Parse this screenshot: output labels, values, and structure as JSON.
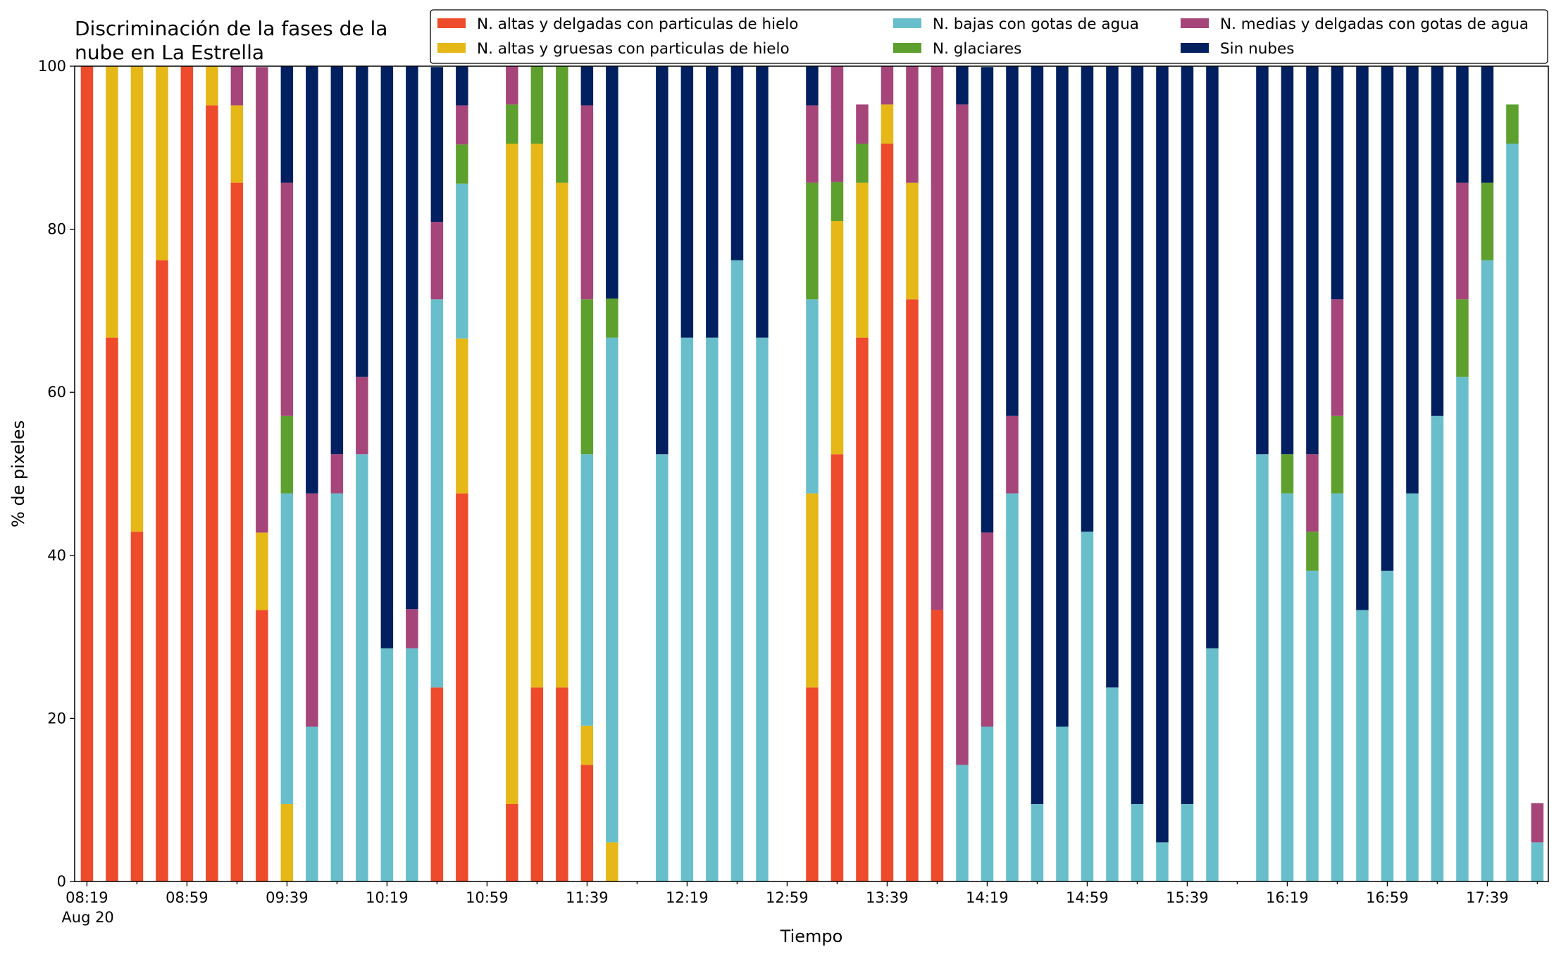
{
  "chart_data": {
    "type": "bar",
    "stacked": true,
    "title_lines": [
      "Discriminación de la fases de la",
      "nube en La Estrella"
    ],
    "xlabel": "Tiempo",
    "ylabel": "% de pixeles",
    "ylim": [
      0,
      100
    ],
    "yticks": [
      "0",
      "20",
      "40",
      "60",
      "80",
      "100"
    ],
    "grid": false,
    "legend_position": "top-right",
    "xtick_labels": [
      "08:19",
      "08:59",
      "09:39",
      "10:19",
      "10:59",
      "11:39",
      "12:19",
      "12:59",
      "13:39",
      "14:19",
      "14:59",
      "15:39",
      "16:19",
      "16:59",
      "17:39"
    ],
    "xtick_sub_label": "Aug 20",
    "series": [
      {
        "name": "N. altas y delgadas con particulas de hielo",
        "color": "#ED4B2B",
        "values": [
          100,
          66.7,
          42.9,
          76.2,
          100,
          95.2,
          85.7,
          33.3,
          0,
          0,
          0,
          0,
          0,
          0,
          23.8,
          47.6,
          null,
          9.5,
          23.8,
          23.8,
          14.3,
          0,
          null,
          0,
          0,
          0,
          0,
          0,
          null,
          23.8,
          52.4,
          66.7,
          90.5,
          71.4,
          33.3,
          0,
          0,
          0,
          0,
          0,
          0,
          0,
          0,
          0,
          0,
          0,
          null,
          0,
          0,
          0,
          0,
          0,
          0,
          0,
          0,
          0,
          0,
          0,
          0
        ]
      },
      {
        "name": "N. altas y gruesas con particulas de hielo",
        "color": "#E5B717",
        "values": [
          0,
          33.3,
          57.1,
          23.8,
          0,
          4.8,
          9.5,
          9.5,
          9.5,
          0,
          0,
          0,
          0,
          0,
          0,
          19.0,
          null,
          81.0,
          66.7,
          61.9,
          4.8,
          4.8,
          null,
          0,
          0,
          0,
          0,
          0,
          null,
          23.8,
          28.6,
          19.0,
          4.8,
          14.3,
          0,
          0,
          0,
          0,
          0,
          0,
          0,
          0,
          0,
          0,
          0,
          0,
          null,
          0,
          0,
          0,
          0,
          0,
          0,
          0,
          0,
          0,
          0,
          0,
          0
        ]
      },
      {
        "name": "N. bajas con gotas de agua",
        "color": "#68BFCB",
        "values": [
          0,
          0,
          0,
          0,
          0,
          0,
          0,
          0,
          38.1,
          19.0,
          47.6,
          52.4,
          28.6,
          28.6,
          47.6,
          19.0,
          null,
          0,
          0,
          0,
          33.3,
          61.9,
          null,
          52.4,
          66.7,
          66.7,
          76.2,
          66.7,
          null,
          23.8,
          0,
          0,
          0,
          0,
          0,
          14.3,
          19.0,
          47.6,
          9.5,
          19.0,
          42.9,
          23.8,
          9.5,
          4.8,
          9.5,
          28.6,
          null,
          52.4,
          47.6,
          38.1,
          47.6,
          33.3,
          38.1,
          47.6,
          57.1,
          61.9,
          76.2,
          90.5,
          4.8
        ]
      },
      {
        "name": "N. glaciares",
        "color": "#5DA02E",
        "values": [
          0,
          0,
          0,
          0,
          0,
          0,
          0,
          0,
          9.5,
          0,
          0,
          0,
          0,
          0,
          0,
          4.8,
          null,
          4.8,
          9.5,
          14.3,
          19.0,
          4.8,
          null,
          0,
          0,
          0,
          0,
          0,
          null,
          14.3,
          4.8,
          4.8,
          0,
          0,
          0,
          0,
          0,
          0,
          0,
          0,
          0,
          0,
          0,
          0,
          0,
          0,
          null,
          0,
          4.8,
          4.8,
          9.5,
          0,
          0,
          0,
          0,
          9.5,
          9.5,
          4.8,
          0
        ]
      },
      {
        "name": "N. medias y delgadas con gotas de agua",
        "color": "#A5457A",
        "values": [
          0,
          0,
          0,
          0,
          0,
          0,
          4.8,
          57.1,
          28.6,
          28.6,
          4.8,
          9.5,
          0,
          4.8,
          9.5,
          4.8,
          null,
          4.8,
          0,
          0,
          23.8,
          0,
          null,
          0,
          0,
          0,
          0,
          0,
          null,
          9.5,
          14.3,
          4.8,
          4.8,
          14.3,
          66.7,
          81.0,
          23.8,
          9.5,
          0,
          0,
          0,
          0,
          0,
          0,
          0,
          0,
          null,
          0,
          0,
          9.5,
          14.3,
          0,
          0,
          0,
          0,
          14.3,
          0,
          0,
          4.8
        ]
      },
      {
        "name": "Sin nubes",
        "color": "#021F60",
        "values": [
          0,
          0,
          0,
          0,
          0,
          0,
          0,
          0,
          14.3,
          52.4,
          47.6,
          38.1,
          71.4,
          66.7,
          19.0,
          4.8,
          null,
          0,
          0,
          0,
          4.8,
          28.6,
          null,
          47.6,
          33.3,
          33.3,
          23.8,
          33.3,
          null,
          4.8,
          0,
          0,
          0,
          0,
          0,
          4.8,
          57.1,
          42.9,
          90.5,
          81.0,
          57.1,
          76.2,
          90.5,
          95.2,
          90.5,
          71.4,
          null,
          47.6,
          47.6,
          47.6,
          28.6,
          66.7,
          61.9,
          52.4,
          42.9,
          14.3,
          14.3,
          0,
          0
        ]
      }
    ]
  }
}
